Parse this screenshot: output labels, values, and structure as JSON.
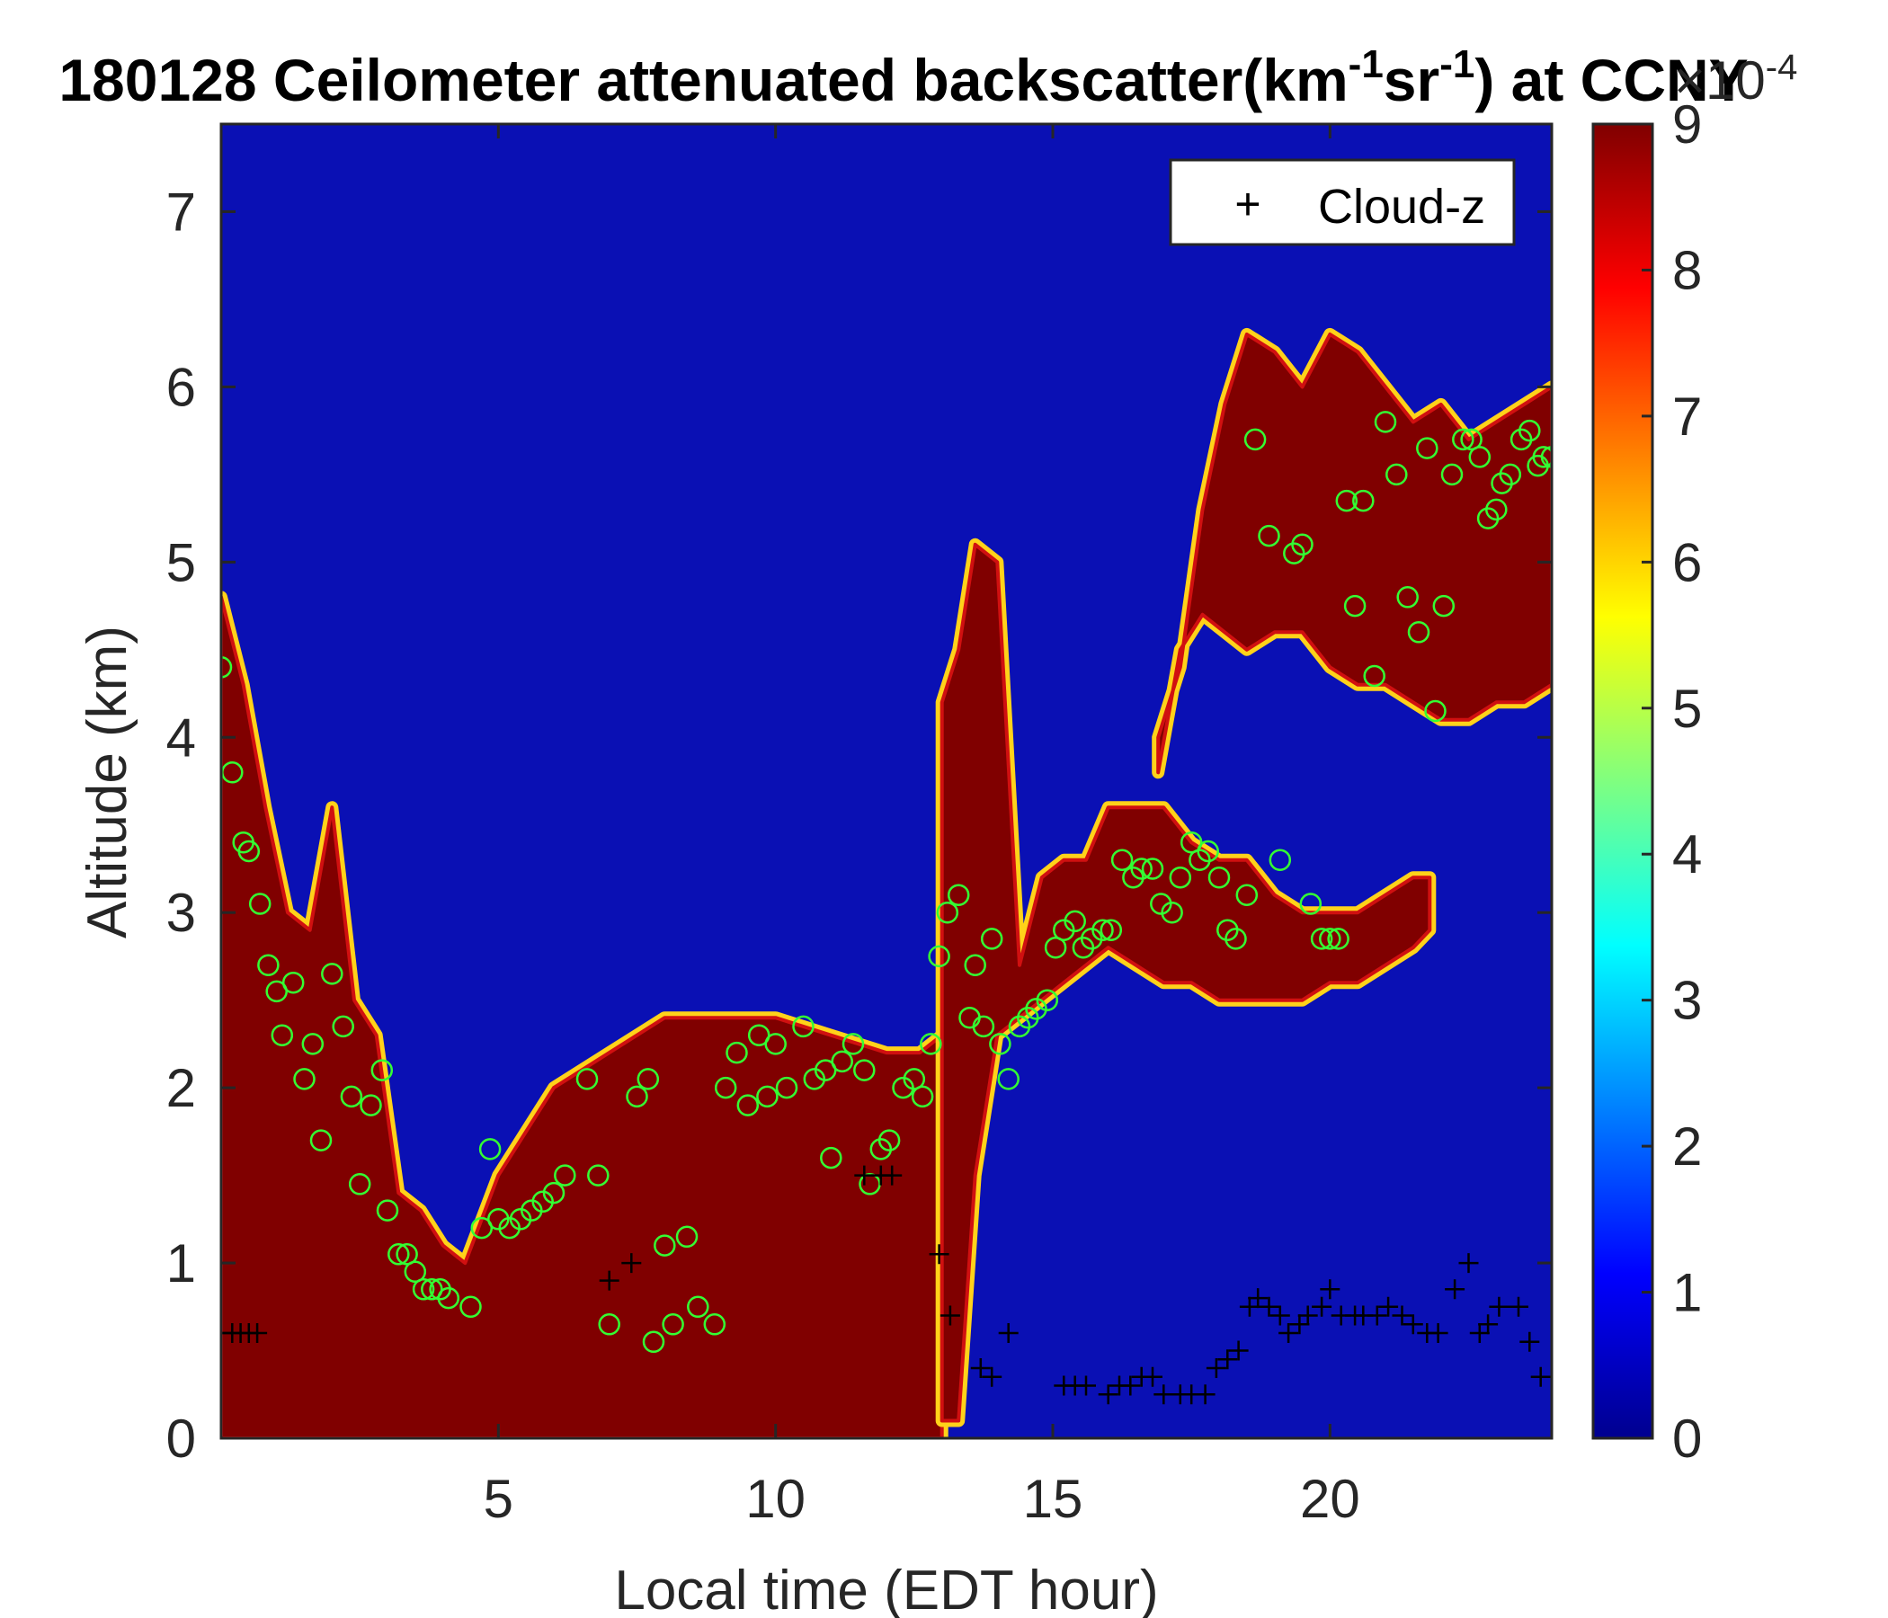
{
  "chart_data": {
    "type": "heatmap",
    "title": {
      "prefix": "180128 Ceilometer attenuated backscatter(km",
      "sup1": "-1",
      "mid": "sr",
      "sup2": "-1",
      "suffix": ") at CCNY"
    },
    "xlabel": "Local time (EDT hour)",
    "ylabel": "Altitude (km)",
    "xlim": [
      0,
      24
    ],
    "ylim": [
      0,
      7.5
    ],
    "x_ticks": [
      5,
      10,
      15,
      20
    ],
    "y_ticks": [
      0,
      1,
      2,
      3,
      4,
      5,
      6,
      7
    ],
    "colorbar": {
      "colormap": "jet",
      "range": [
        0,
        9
      ],
      "ticks": [
        0,
        1,
        2,
        3,
        4,
        5,
        6,
        7,
        8,
        9
      ],
      "exponent_base": "×10",
      "exponent_power": "-4"
    },
    "legend": {
      "label": "Cloud-z",
      "marker": "+",
      "position": "top-right"
    },
    "saturated_layers": [
      {
        "x": [
          0.0,
          0.4,
          0.8,
          1.2,
          1.6,
          2.0,
          2.4,
          2.8,
          3.2,
          3.6,
          4.0,
          4.4,
          5.0,
          6.0,
          7.0,
          8.0,
          9.0,
          10.0,
          11.0,
          12.0,
          12.6,
          13.0
        ],
        "top": [
          4.8,
          4.3,
          3.6,
          3.0,
          2.9,
          3.6,
          2.5,
          2.3,
          1.4,
          1.3,
          1.1,
          1.0,
          1.5,
          2.0,
          2.2,
          2.4,
          2.4,
          2.4,
          2.3,
          2.2,
          2.2,
          2.3
        ],
        "bottom": 0
      },
      {
        "x": [
          13.0,
          13.3,
          13.6,
          14.0,
          14.4,
          14.8,
          15.2,
          15.6,
          16.0,
          16.5,
          17.0,
          17.5,
          18.0,
          18.5,
          19.0,
          19.5,
          20.0,
          20.5,
          21.0,
          21.5,
          21.8
        ],
        "top": [
          4.2,
          4.5,
          5.1,
          5.0,
          2.7,
          3.2,
          3.3,
          3.3,
          3.6,
          3.6,
          3.6,
          3.4,
          3.3,
          3.3,
          3.1,
          3.0,
          3.0,
          3.0,
          3.1,
          3.2,
          3.2
        ],
        "bottom": [
          0.1,
          0.1,
          1.5,
          2.3,
          2.4,
          2.5,
          2.6,
          2.7,
          2.8,
          2.7,
          2.6,
          2.6,
          2.5,
          2.5,
          2.5,
          2.5,
          2.6,
          2.6,
          2.7,
          2.8,
          2.9
        ]
      },
      {
        "x": [
          16.9,
          17.3,
          17.7,
          18.1,
          18.5,
          19.0,
          19.5,
          20.0,
          20.5,
          21.0,
          21.5,
          22.0,
          22.5,
          23.0,
          23.5,
          24.0
        ],
        "top": [
          4.0,
          4.4,
          5.3,
          5.9,
          6.3,
          6.2,
          6.0,
          6.3,
          6.2,
          6.0,
          5.8,
          5.9,
          5.7,
          5.8,
          5.9,
          6.0
        ],
        "bottom": [
          3.8,
          4.5,
          4.7,
          4.6,
          4.5,
          4.6,
          4.6,
          4.4,
          4.3,
          4.3,
          4.2,
          4.1,
          4.1,
          4.2,
          4.2,
          4.3
        ]
      }
    ],
    "green_circles": {
      "x": [
        0.0,
        0.2,
        0.4,
        0.5,
        0.7,
        0.85,
        1.0,
        1.1,
        1.3,
        1.5,
        1.65,
        1.8,
        2.0,
        2.2,
        2.35,
        2.5,
        2.7,
        2.9,
        3.0,
        3.2,
        3.35,
        3.5,
        3.65,
        3.8,
        3.95,
        4.1,
        4.5,
        4.7,
        4.85,
        5.0,
        5.2,
        5.4,
        5.6,
        5.8,
        6.0,
        6.2,
        6.6,
        6.8,
        7.0,
        7.5,
        7.7,
        7.8,
        8.0,
        8.15,
        8.4,
        8.6,
        8.9,
        9.1,
        9.3,
        9.5,
        9.7,
        9.85,
        10.0,
        10.2,
        10.5,
        10.7,
        10.9,
        11.0,
        11.2,
        11.4,
        11.6,
        11.7,
        11.9,
        12.05,
        12.3,
        12.5,
        12.65,
        12.8,
        12.95,
        13.1,
        13.3,
        13.5,
        13.6,
        13.75,
        13.9,
        14.05,
        14.2,
        14.4,
        14.55,
        14.7,
        14.9,
        15.05,
        15.2,
        15.4,
        15.55,
        15.7,
        15.9,
        16.05,
        16.25,
        16.45,
        16.6,
        16.8,
        16.95,
        17.15,
        17.3,
        17.5,
        17.65,
        17.8,
        18.0,
        18.15,
        18.3,
        18.5,
        18.65,
        18.9,
        19.1,
        19.35,
        19.5,
        19.65,
        19.85,
        20.0,
        20.15,
        20.3,
        20.45,
        20.6,
        20.8,
        21.0,
        21.2,
        21.4,
        21.6,
        21.75,
        21.9,
        22.05,
        22.2,
        22.4,
        22.55,
        22.7,
        22.85,
        23.0,
        23.1,
        23.25,
        23.45,
        23.6,
        23.75,
        23.85,
        24.0
      ],
      "y": [
        4.4,
        3.8,
        3.4,
        3.35,
        3.05,
        2.7,
        2.55,
        2.3,
        2.6,
        2.05,
        2.25,
        1.7,
        2.65,
        2.35,
        1.95,
        1.45,
        1.9,
        2.1,
        1.3,
        1.05,
        1.05,
        0.95,
        0.85,
        0.85,
        0.85,
        0.8,
        0.75,
        1.2,
        1.65,
        1.25,
        1.2,
        1.25,
        1.3,
        1.35,
        1.4,
        1.5,
        2.05,
        1.5,
        0.65,
        1.95,
        2.05,
        0.55,
        1.1,
        0.65,
        1.15,
        0.75,
        0.65,
        2.0,
        2.2,
        1.9,
        2.3,
        1.95,
        2.25,
        2.0,
        2.35,
        2.05,
        2.1,
        1.6,
        2.15,
        2.25,
        2.1,
        1.45,
        1.65,
        1.7,
        2.0,
        2.05,
        1.95,
        2.25,
        2.75,
        3.0,
        3.1,
        2.4,
        2.7,
        2.35,
        2.85,
        2.25,
        2.05,
        2.35,
        2.4,
        2.45,
        2.5,
        2.8,
        2.9,
        2.95,
        2.8,
        2.85,
        2.9,
        2.9,
        3.3,
        3.2,
        3.25,
        3.25,
        3.05,
        3.0,
        3.2,
        3.4,
        3.3,
        3.35,
        3.2,
        2.9,
        2.85,
        3.1,
        5.7,
        5.15,
        3.3,
        5.05,
        5.1,
        3.05,
        2.85,
        2.85,
        2.85,
        5.35,
        4.75,
        5.35,
        4.35,
        5.8,
        5.5,
        4.8,
        4.6,
        5.65,
        4.15,
        4.75,
        5.5,
        5.7,
        5.7,
        5.6,
        5.25,
        5.3,
        5.45,
        5.5,
        5.7,
        5.75,
        5.55,
        5.6,
        5.6,
        5.7
      ]
    },
    "cloud_z": {
      "x": [
        0.0,
        0.2,
        0.35,
        0.5,
        0.65,
        7.0,
        7.4,
        11.6,
        11.9,
        12.1,
        12.95,
        13.15,
        13.7,
        13.9,
        14.2,
        15.2,
        15.4,
        15.6,
        16.0,
        16.2,
        16.4,
        16.6,
        16.8,
        17.0,
        17.3,
        17.5,
        17.75,
        17.95,
        18.15,
        18.35,
        18.55,
        18.7,
        18.9,
        19.1,
        19.25,
        19.45,
        19.6,
        19.85,
        20.0,
        20.2,
        20.45,
        20.6,
        20.85,
        21.05,
        21.3,
        21.5,
        21.75,
        21.95,
        22.25,
        22.5,
        22.7,
        22.85,
        23.05,
        23.4,
        23.6,
        23.8,
        24.0
      ],
      "y": [
        0.6,
        0.6,
        0.6,
        0.6,
        0.6,
        0.9,
        1.0,
        1.5,
        1.5,
        1.5,
        1.05,
        0.7,
        0.4,
        0.35,
        0.6,
        0.3,
        0.3,
        0.3,
        0.25,
        0.3,
        0.3,
        0.35,
        0.35,
        0.25,
        0.25,
        0.25,
        0.25,
        0.4,
        0.45,
        0.5,
        0.75,
        0.8,
        0.75,
        0.7,
        0.6,
        0.65,
        0.7,
        0.75,
        0.85,
        0.7,
        0.7,
        0.7,
        0.7,
        0.75,
        0.7,
        0.65,
        0.6,
        0.6,
        0.85,
        1.0,
        0.6,
        0.65,
        0.75,
        0.75,
        0.55,
        0.35,
        0.35
      ]
    }
  }
}
